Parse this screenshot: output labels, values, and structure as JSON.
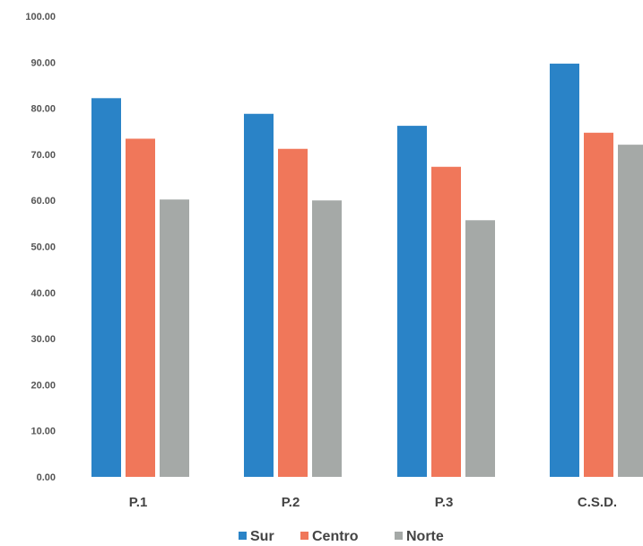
{
  "chart_data": {
    "type": "bar",
    "categories": [
      "P.1",
      "P.2",
      "P.3",
      "C.S.D."
    ],
    "series": [
      {
        "name": "Sur",
        "color": "#2a83c7",
        "values": [
          82.2,
          78.8,
          76.2,
          89.7
        ]
      },
      {
        "name": "Centro",
        "color": "#f0775a",
        "values": [
          73.4,
          71.2,
          67.3,
          74.7
        ]
      },
      {
        "name": "Norte",
        "color": "#a5a9a7",
        "values": [
          60.2,
          60.0,
          55.7,
          72.1
        ]
      }
    ],
    "yticks": [
      "0.00",
      "10.00",
      "20.00",
      "30.00",
      "40.00",
      "50.00",
      "60.00",
      "70.00",
      "80.00",
      "90.00",
      "100.00"
    ],
    "ylim": [
      0,
      100
    ],
    "grid": false,
    "legend_position": "bottom"
  }
}
